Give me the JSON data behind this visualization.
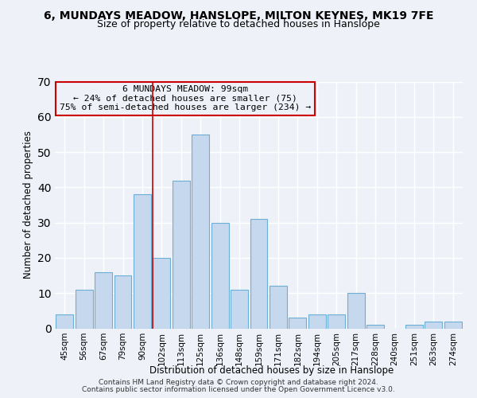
{
  "title": "6, MUNDAYS MEADOW, HANSLOPE, MILTON KEYNES, MK19 7FE",
  "subtitle": "Size of property relative to detached houses in Hanslope",
  "xlabel": "Distribution of detached houses by size in Hanslope",
  "ylabel": "Number of detached properties",
  "categories": [
    "45sqm",
    "56sqm",
    "67sqm",
    "79sqm",
    "90sqm",
    "102sqm",
    "113sqm",
    "125sqm",
    "136sqm",
    "148sqm",
    "159sqm",
    "171sqm",
    "182sqm",
    "194sqm",
    "205sqm",
    "217sqm",
    "228sqm",
    "240sqm",
    "251sqm",
    "263sqm",
    "274sqm"
  ],
  "values": [
    4,
    11,
    16,
    15,
    38,
    20,
    42,
    55,
    30,
    11,
    31,
    12,
    3,
    4,
    4,
    10,
    1,
    0,
    1,
    2,
    2
  ],
  "bar_color": "#c5d8ed",
  "bar_edge_color": "#6baed6",
  "highlight_line_color": "#cc0000",
  "annotation_line1": "6 MUNDAYS MEADOW: 99sqm",
  "annotation_line2": "← 24% of detached houses are smaller (75)",
  "annotation_line3": "75% of semi-detached houses are larger (234) →",
  "annotation_box_edge_color": "#cc0000",
  "ylim": [
    0,
    70
  ],
  "yticks": [
    0,
    10,
    20,
    30,
    40,
    50,
    60,
    70
  ],
  "footer1": "Contains HM Land Registry data © Crown copyright and database right 2024.",
  "footer2": "Contains public sector information licensed under the Open Government Licence v3.0.",
  "bg_color": "#eef2f8",
  "grid_color": "#ffffff",
  "title_fontsize": 10,
  "subtitle_fontsize": 9
}
